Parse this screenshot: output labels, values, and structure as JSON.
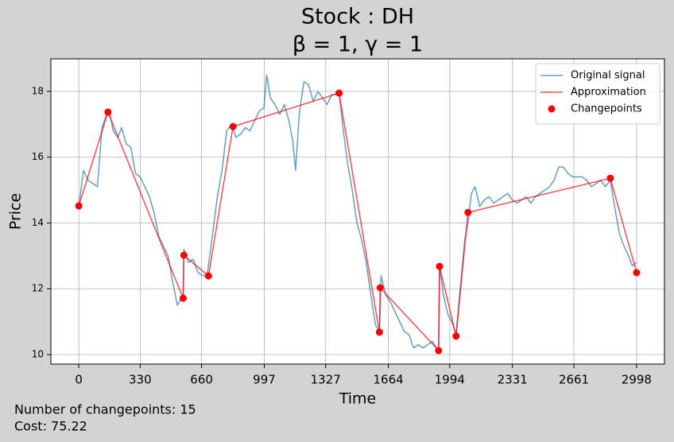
{
  "chart_data": {
    "type": "line",
    "title": "Stock : DH",
    "subtitle": "β = 1, γ = 1",
    "x_label": "Time",
    "y_label": "Price",
    "xlim": [
      -150,
      3148
    ],
    "ylim": [
      9.71,
      18.99
    ],
    "xticks": [
      0,
      330,
      660,
      997,
      1327,
      1664,
      1994,
      2331,
      2661,
      2998
    ],
    "yticks": [
      10,
      12,
      14,
      16,
      18
    ],
    "grid": true,
    "legend": "upper right",
    "series": [
      {
        "name": "Original signal",
        "style": "line",
        "color": "#1f77b4",
        "opacity": 0.7,
        "width": 1.5,
        "x": [
          0,
          25,
          50,
          75,
          100,
          125,
          150,
          165,
          185,
          210,
          230,
          255,
          280,
          305,
          330,
          355,
          380,
          405,
          430,
          455,
          480,
          505,
          530,
          550,
          561,
          565,
          590,
          615,
          640,
          665,
          690,
          720,
          745,
          770,
          795,
          820,
          845,
          870,
          895,
          920,
          945,
          970,
          995,
          1010,
          1030,
          1055,
          1080,
          1105,
          1130,
          1150,
          1165,
          1185,
          1210,
          1235,
          1260,
          1285,
          1310,
          1335,
          1360,
          1385,
          1400,
          1420,
          1445,
          1470,
          1495,
          1520,
          1545,
          1570,
          1595,
          1616,
          1625,
          1650,
          1675,
          1700,
          1725,
          1750,
          1775,
          1800,
          1825,
          1850,
          1875,
          1900,
          1934,
          1939,
          1960,
          1985,
          2005,
          2028,
          2050,
          2075,
          2092,
          2110,
          2130,
          2155,
          2180,
          2205,
          2230,
          2255,
          2280,
          2305,
          2330,
          2355,
          2380,
          2405,
          2430,
          2455,
          2480,
          2505,
          2530,
          2555,
          2580,
          2605,
          2630,
          2655,
          2680,
          2705,
          2730,
          2755,
          2780,
          2805,
          2830,
          2857,
          2880,
          2905,
          2930,
          2955,
          2975,
          2998
        ],
        "values": [
          14.5,
          15.6,
          15.3,
          15.2,
          15.1,
          16.9,
          17.3,
          17.4,
          16.8,
          16.6,
          16.9,
          16.4,
          16.3,
          15.5,
          15.4,
          15.1,
          14.8,
          14.3,
          13.6,
          13.3,
          13.0,
          12.2,
          11.5,
          11.7,
          11.7,
          13.2,
          12.8,
          12.9,
          12.5,
          12.4,
          12.4,
          13.7,
          14.8,
          15.6,
          16.8,
          17.0,
          16.6,
          16.7,
          16.9,
          16.8,
          17.1,
          17.4,
          17.5,
          18.5,
          17.8,
          17.6,
          17.3,
          17.6,
          17.1,
          16.5,
          15.6,
          17.3,
          18.3,
          18.2,
          17.7,
          18.0,
          17.8,
          17.6,
          17.9,
          17.9,
          17.9,
          16.9,
          15.8,
          15.0,
          14.0,
          13.5,
          12.8,
          11.8,
          10.9,
          10.7,
          12.4,
          11.8,
          11.6,
          11.3,
          11.0,
          10.7,
          10.6,
          10.2,
          10.3,
          10.2,
          10.3,
          10.4,
          10.1,
          12.7,
          11.8,
          11.2,
          11.0,
          10.6,
          12.0,
          13.5,
          14.0,
          14.9,
          15.1,
          14.5,
          14.7,
          14.8,
          14.6,
          14.7,
          14.8,
          14.9,
          14.7,
          14.6,
          14.7,
          14.8,
          14.6,
          14.8,
          14.9,
          15.0,
          15.1,
          15.3,
          15.7,
          15.7,
          15.5,
          15.4,
          15.4,
          15.4,
          15.3,
          15.1,
          15.2,
          15.3,
          15.1,
          15.3,
          14.5,
          13.7,
          13.3,
          13.0,
          12.7,
          12.8
        ]
      },
      {
        "name": "Approximation",
        "style": "line",
        "color": "#ff0000",
        "opacity": 0.7,
        "width": 1.5,
        "x": [
          0,
          157,
          561,
          565,
          697,
          829,
          1399,
          1616,
          1620,
          1934,
          1939,
          2028,
          2092,
          2857,
          2998
        ],
        "values": [
          14.52,
          17.37,
          11.71,
          13.02,
          12.39,
          16.93,
          17.95,
          10.68,
          12.03,
          10.12,
          12.68,
          10.56,
          14.32,
          15.36,
          12.49
        ]
      },
      {
        "name": "Changepoints",
        "style": "scatter",
        "color": "#ff0000",
        "opacity": 1,
        "x": [
          0,
          157,
          561,
          565,
          697,
          829,
          1399,
          1616,
          1620,
          1934,
          1939,
          2028,
          2092,
          2857,
          2998
        ],
        "values": [
          14.52,
          17.37,
          11.71,
          13.02,
          12.39,
          16.93,
          17.95,
          10.68,
          12.03,
          10.12,
          12.68,
          10.56,
          14.32,
          15.36,
          12.49
        ]
      }
    ],
    "annotations": [
      "Number of changepoints: 15",
      "Cost: 75.22"
    ]
  }
}
